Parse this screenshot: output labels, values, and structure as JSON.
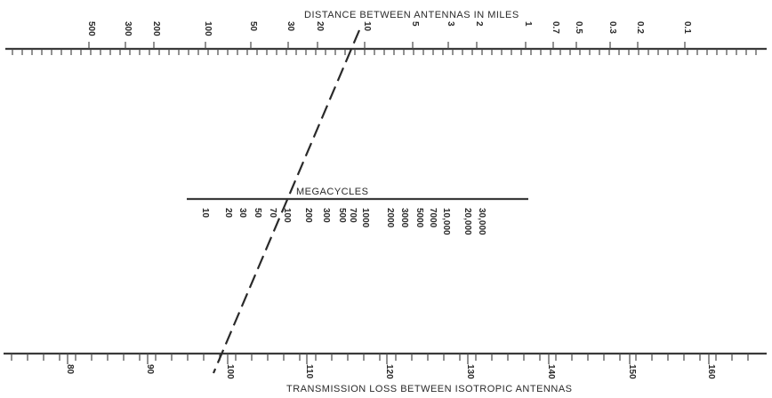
{
  "top_scale": {
    "title": "DISTANCE BETWEEN ANTENNAS IN MILES",
    "labels": [
      "500",
      "300",
      "200",
      "100",
      "50",
      "30",
      "20",
      "10",
      "5",
      "3",
      "2",
      "1",
      "0.7",
      "0.5",
      "0.3",
      "0.2",
      "0.1"
    ]
  },
  "middle_scale": {
    "title": "MEGACYCLES",
    "labels": [
      "10",
      "20",
      "30",
      "50",
      "70",
      "100",
      "200",
      "300",
      "500",
      "700",
      "1000",
      "2000",
      "3000",
      "5000",
      "7000",
      "10,000",
      "20,000",
      "30,000"
    ]
  },
  "bottom_scale": {
    "title": "TRANSMISSION LOSS BETWEEN ISOTROPIC ANTENNAS",
    "labels": [
      "80",
      "90",
      "100",
      "110",
      "120",
      "130",
      "140",
      "150",
      "160"
    ]
  }
}
